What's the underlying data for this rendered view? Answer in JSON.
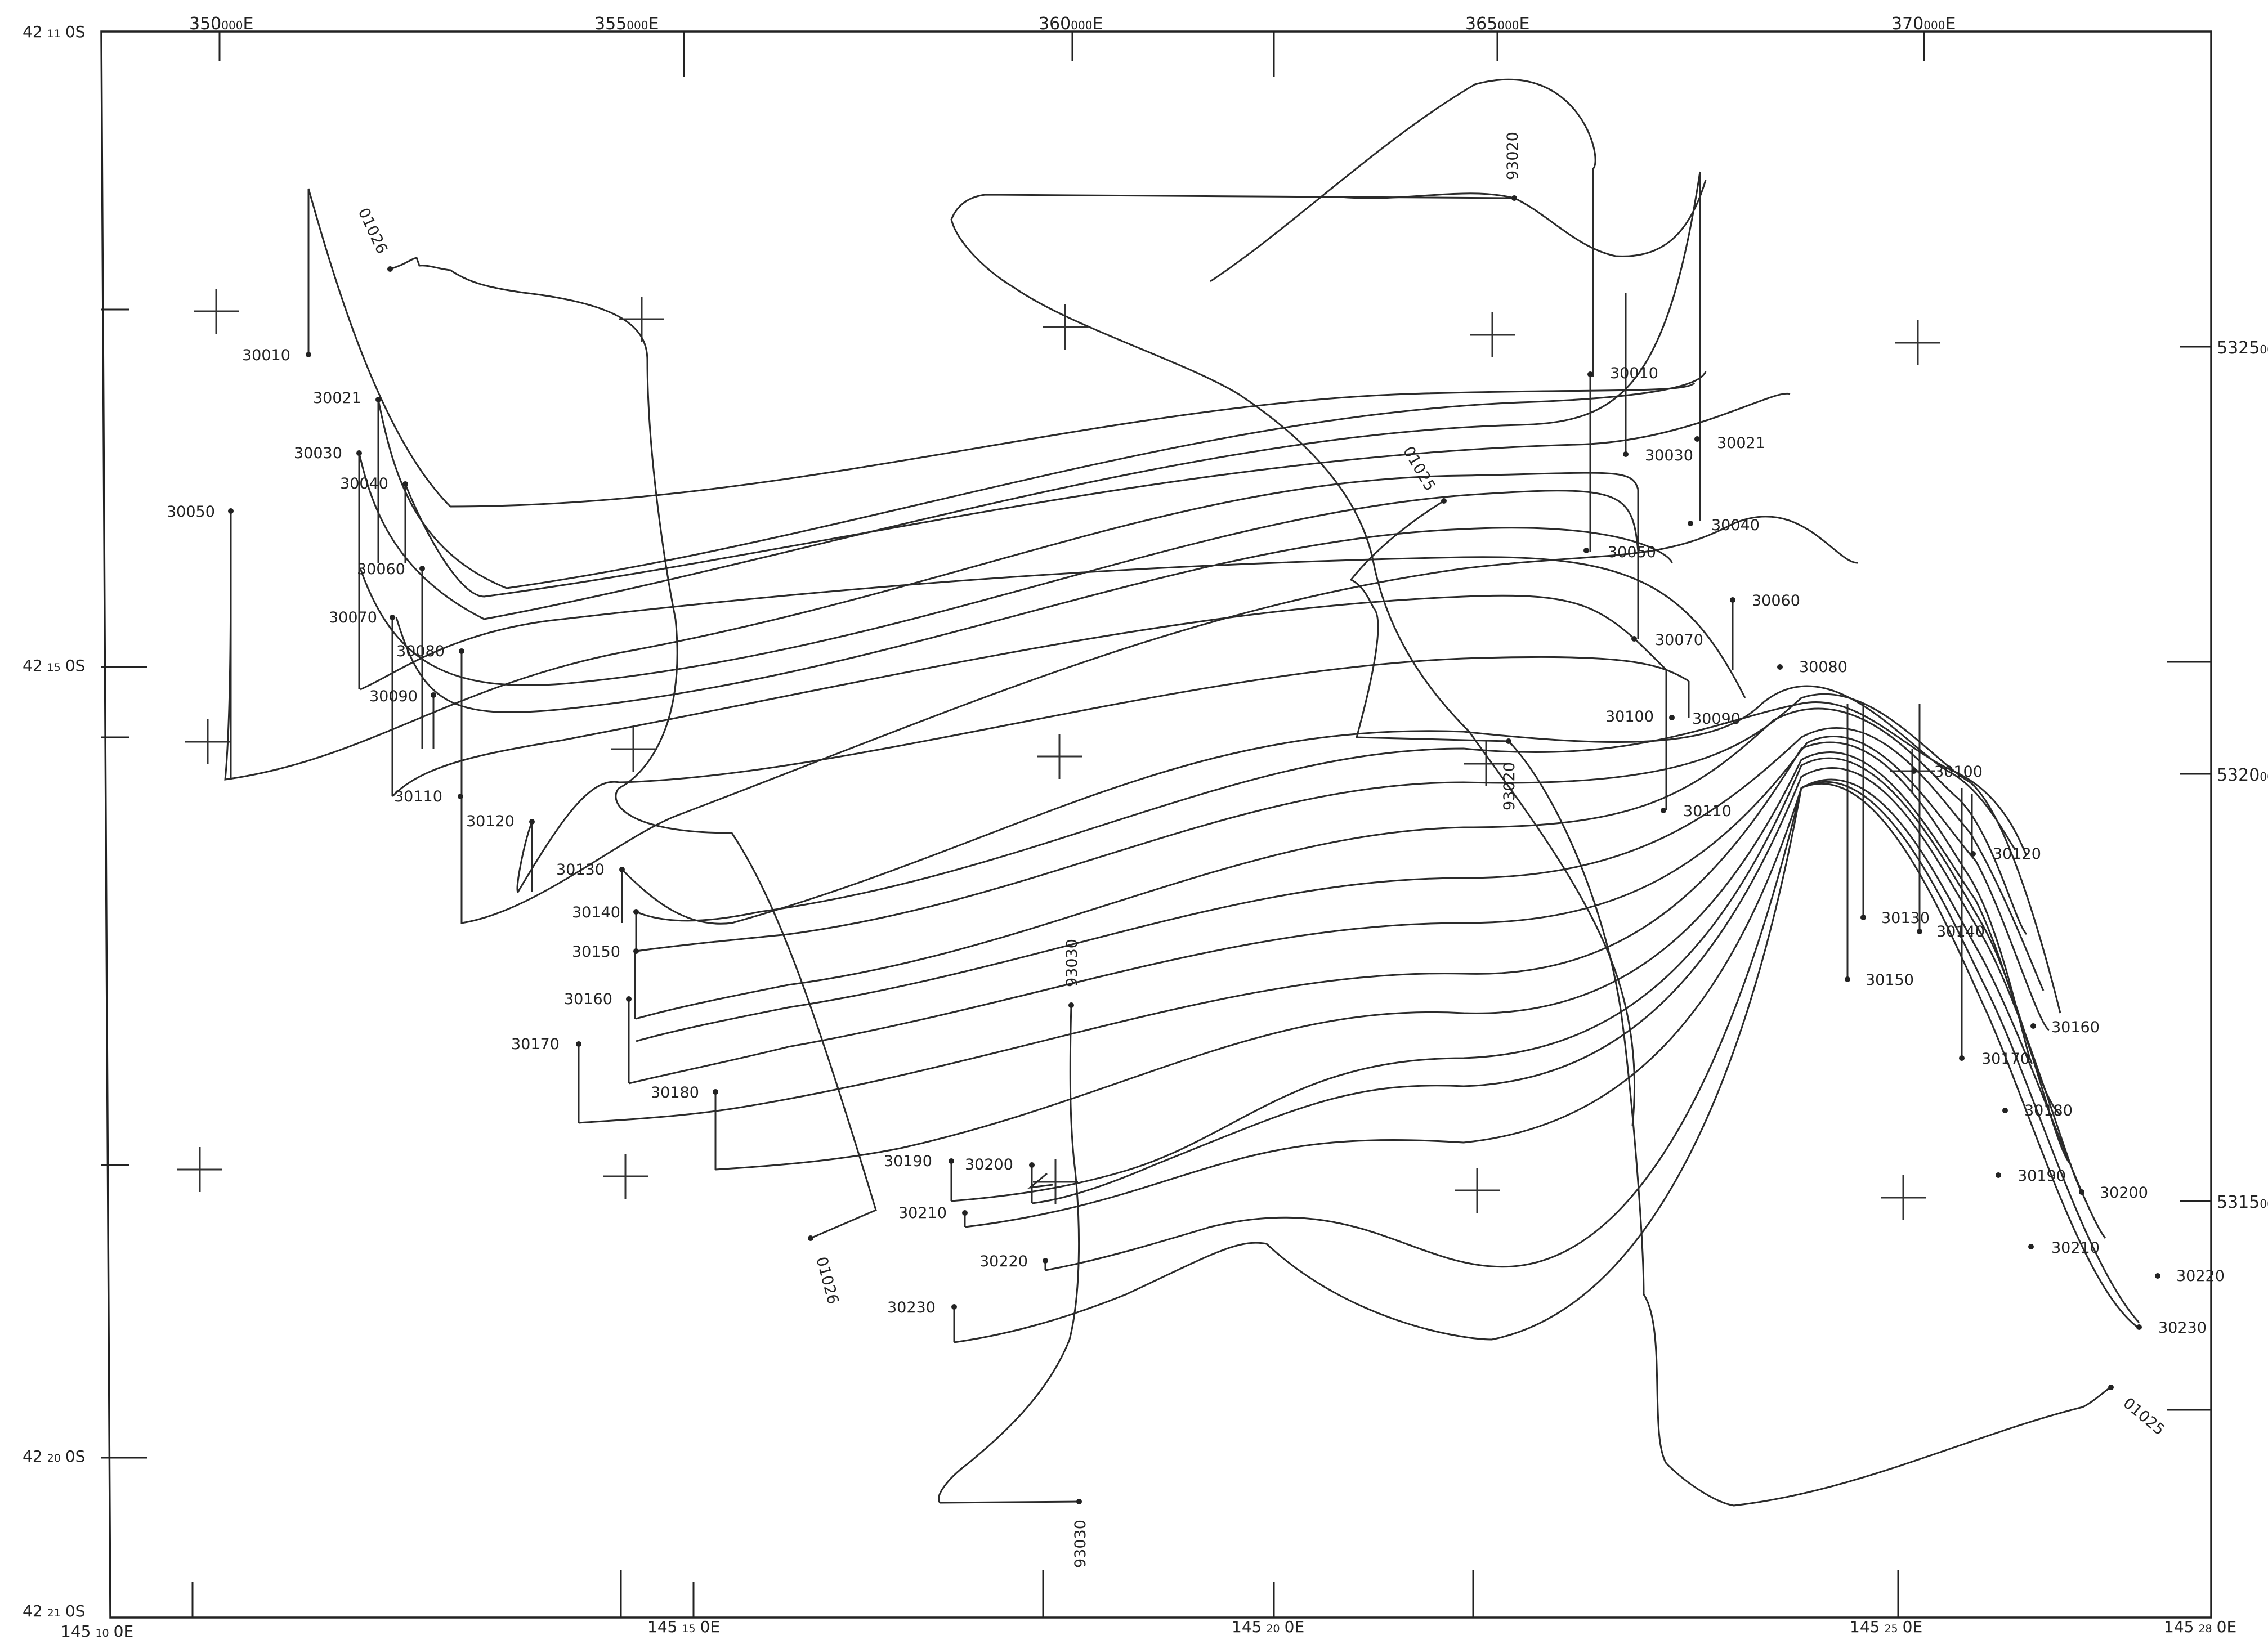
{
  "map": {
    "top_eastings": [
      {
        "main": "350",
        "sub": "000",
        "unit": "E"
      },
      {
        "main": "355",
        "sub": "000",
        "unit": "E"
      },
      {
        "main": "360",
        "sub": "000",
        "unit": "E"
      },
      {
        "main": "365",
        "sub": "000",
        "unit": "E"
      },
      {
        "main": "370",
        "sub": "000",
        "unit": "E"
      }
    ],
    "right_northings": [
      {
        "main": "5325",
        "sub": "00"
      },
      {
        "main": "5320",
        "sub": "00"
      },
      {
        "main": "5315",
        "sub": "00"
      }
    ],
    "left_latitudes": [
      {
        "deg": "42",
        "min": "11",
        "unit": "0S"
      },
      {
        "deg": "42",
        "min": "15",
        "unit": "0S"
      },
      {
        "deg": "42",
        "min": "20",
        "unit": "0S"
      },
      {
        "deg": "42",
        "min": "21",
        "unit": "0S"
      }
    ],
    "bottom_longitudes": [
      {
        "deg": "145",
        "min": "10",
        "unit": "0E"
      },
      {
        "deg": "145",
        "min": "15",
        "unit": "0E"
      },
      {
        "deg": "145",
        "min": "20",
        "unit": "0E"
      },
      {
        "deg": "145",
        "min": "25",
        "unit": "0E"
      },
      {
        "deg": "145",
        "min": "28",
        "unit": "0E"
      }
    ],
    "west_line_labels": [
      "30010",
      "30021",
      "30030",
      "30040",
      "30050",
      "30060",
      "30070",
      "30080",
      "30090",
      "30110",
      "30120",
      "30130",
      "30140",
      "30150",
      "30160",
      "30170",
      "30180",
      "30190",
      "30200",
      "30210",
      "30220",
      "30230"
    ],
    "east_line_labels": [
      "30010",
      "30030",
      "30021",
      "30040",
      "30050",
      "30060",
      "30070",
      "30080",
      "30100",
      "30090",
      "30110",
      "30100",
      "30120",
      "30130",
      "30140",
      "30150",
      "30160",
      "30170",
      "30180",
      "30190",
      "30200",
      "30210",
      "30220",
      "30230"
    ],
    "tie_line_labels": [
      "01026",
      "01026",
      "01025",
      "01025",
      "93020",
      "93020",
      "93030",
      "93030"
    ]
  }
}
